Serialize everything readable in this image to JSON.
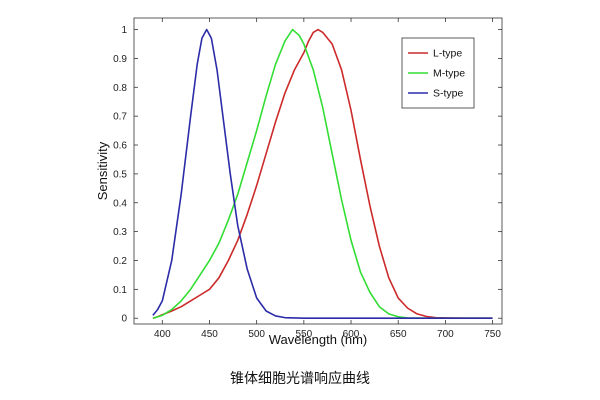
{
  "chart_data": {
    "type": "line",
    "title": "",
    "xlabel": "Wavelength (nm)",
    "ylabel": "Sensitivity",
    "xlim": [
      370,
      760
    ],
    "ylim": [
      -0.02,
      1.04
    ],
    "x_ticks": [
      400,
      450,
      500,
      550,
      600,
      650,
      700,
      750
    ],
    "y_ticks": [
      0,
      0.1,
      0.2,
      0.3,
      0.4,
      0.5,
      0.6,
      0.7,
      0.8,
      0.9,
      1
    ],
    "y_tick_labels": [
      "0",
      "0.1",
      "0.2",
      "0.3",
      "0.4",
      "0.5",
      "0.6",
      "0.7",
      "0.8",
      "0.9",
      "1"
    ],
    "grid": false,
    "legend_position": "top-right",
    "series": [
      {
        "name": "L-type",
        "color": "#cc2a2a",
        "points": [
          [
            390,
            0
          ],
          [
            395,
            0.005
          ],
          [
            400,
            0.012
          ],
          [
            410,
            0.025
          ],
          [
            420,
            0.04
          ],
          [
            430,
            0.06
          ],
          [
            440,
            0.08
          ],
          [
            450,
            0.1
          ],
          [
            460,
            0.14
          ],
          [
            470,
            0.2
          ],
          [
            480,
            0.27
          ],
          [
            490,
            0.36
          ],
          [
            500,
            0.46
          ],
          [
            510,
            0.57
          ],
          [
            520,
            0.68
          ],
          [
            530,
            0.78
          ],
          [
            540,
            0.86
          ],
          [
            550,
            0.92
          ],
          [
            555,
            0.96
          ],
          [
            560,
            0.99
          ],
          [
            565,
            1.0
          ],
          [
            570,
            0.99
          ],
          [
            575,
            0.97
          ],
          [
            580,
            0.95
          ],
          [
            590,
            0.86
          ],
          [
            600,
            0.72
          ],
          [
            610,
            0.55
          ],
          [
            620,
            0.39
          ],
          [
            630,
            0.25
          ],
          [
            640,
            0.14
          ],
          [
            650,
            0.07
          ],
          [
            660,
            0.035
          ],
          [
            670,
            0.015
          ],
          [
            680,
            0.006
          ],
          [
            690,
            0.002
          ],
          [
            700,
            0.001
          ],
          [
            720,
            0
          ],
          [
            750,
            0
          ]
        ]
      },
      {
        "name": "M-type",
        "color": "#33dd33",
        "points": [
          [
            390,
            0
          ],
          [
            400,
            0.01
          ],
          [
            410,
            0.03
          ],
          [
            420,
            0.06
          ],
          [
            430,
            0.1
          ],
          [
            440,
            0.15
          ],
          [
            450,
            0.2
          ],
          [
            460,
            0.26
          ],
          [
            470,
            0.34
          ],
          [
            480,
            0.43
          ],
          [
            490,
            0.54
          ],
          [
            500,
            0.65
          ],
          [
            510,
            0.77
          ],
          [
            520,
            0.88
          ],
          [
            530,
            0.96
          ],
          [
            538,
            1.0
          ],
          [
            545,
            0.98
          ],
          [
            550,
            0.95
          ],
          [
            560,
            0.86
          ],
          [
            570,
            0.73
          ],
          [
            580,
            0.57
          ],
          [
            590,
            0.41
          ],
          [
            600,
            0.27
          ],
          [
            610,
            0.16
          ],
          [
            620,
            0.09
          ],
          [
            630,
            0.04
          ],
          [
            640,
            0.015
          ],
          [
            650,
            0.005
          ],
          [
            660,
            0.001
          ],
          [
            680,
            0
          ],
          [
            750,
            0
          ]
        ]
      },
      {
        "name": "S-type",
        "color": "#2c2ca8",
        "points": [
          [
            390,
            0.01
          ],
          [
            395,
            0.03
          ],
          [
            400,
            0.06
          ],
          [
            410,
            0.2
          ],
          [
            420,
            0.43
          ],
          [
            430,
            0.7
          ],
          [
            437,
            0.88
          ],
          [
            442,
            0.97
          ],
          [
            447,
            1.0
          ],
          [
            452,
            0.97
          ],
          [
            458,
            0.86
          ],
          [
            465,
            0.68
          ],
          [
            472,
            0.5
          ],
          [
            480,
            0.32
          ],
          [
            490,
            0.17
          ],
          [
            500,
            0.07
          ],
          [
            510,
            0.025
          ],
          [
            520,
            0.008
          ],
          [
            530,
            0.002
          ],
          [
            550,
            0
          ],
          [
            750,
            0
          ]
        ]
      }
    ]
  },
  "caption": "锥体细胞光谱响应曲线"
}
